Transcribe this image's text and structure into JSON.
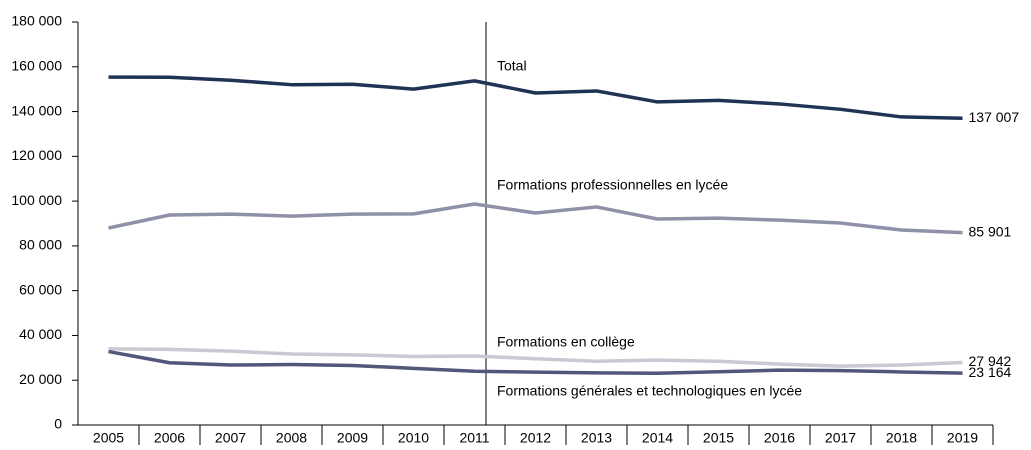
{
  "chart_data": {
    "type": "line",
    "categories": [
      "2005",
      "2006",
      "2007",
      "2008",
      "2009",
      "2010",
      "2011",
      "2012",
      "2013",
      "2014",
      "2015",
      "2016",
      "2017",
      "2018",
      "2019"
    ],
    "series": [
      {
        "name": "Total",
        "color": "#1f3355",
        "values": [
          155400,
          155300,
          154000,
          152000,
          152200,
          150000,
          153700,
          148300,
          149200,
          144300,
          145000,
          143400,
          141000,
          137600,
          137007
        ],
        "value_labels": [
          null,
          null,
          null,
          null,
          null,
          null,
          null,
          null,
          null,
          null,
          null,
          null,
          null,
          null,
          "137 007"
        ]
      },
      {
        "name": "Formations professionnelles en lycée",
        "color": "#8e91a8",
        "values": [
          88000,
          93800,
          94200,
          93300,
          94200,
          94300,
          98700,
          94700,
          97400,
          92000,
          92400,
          91500,
          90200,
          87100,
          85901
        ],
        "value_labels": [
          null,
          null,
          null,
          null,
          null,
          null,
          null,
          null,
          null,
          null,
          null,
          null,
          null,
          null,
          "85 901"
        ]
      },
      {
        "name": "Formations en collège",
        "color": "#c9c9d3",
        "values": [
          34000,
          33800,
          33000,
          31700,
          31300,
          30600,
          30800,
          29600,
          28500,
          29000,
          28500,
          27200,
          26300,
          26800,
          27942
        ],
        "value_labels": [
          null,
          null,
          null,
          null,
          null,
          null,
          null,
          null,
          null,
          null,
          null,
          null,
          null,
          null,
          "27 942"
        ]
      },
      {
        "name": "Formations générales et technologiques en lycée",
        "color": "#53577a",
        "values": [
          32800,
          27800,
          26800,
          27000,
          26600,
          25300,
          24000,
          23600,
          23300,
          23100,
          23800,
          24500,
          24300,
          23700,
          23164
        ],
        "value_labels": [
          null,
          null,
          null,
          null,
          null,
          null,
          null,
          null,
          null,
          null,
          null,
          null,
          null,
          null,
          "23 164"
        ]
      }
    ],
    "ylim": [
      0,
      180000
    ],
    "yticks": [
      0,
      {
        "value": 20000,
        "label": "20 000"
      },
      {
        "value": 40000,
        "label": "40 000"
      },
      {
        "value": 60000,
        "label": "60 000"
      },
      {
        "value": 80000,
        "label": "80 000"
      },
      {
        "value": 100000,
        "label": "100 000"
      },
      {
        "value": 120000,
        "label": "120 000"
      },
      {
        "value": 140000,
        "label": "140 000"
      },
      {
        "value": 160000,
        "label": "160 000"
      },
      {
        "value": 180000,
        "label": "180 000"
      }
    ]
  }
}
